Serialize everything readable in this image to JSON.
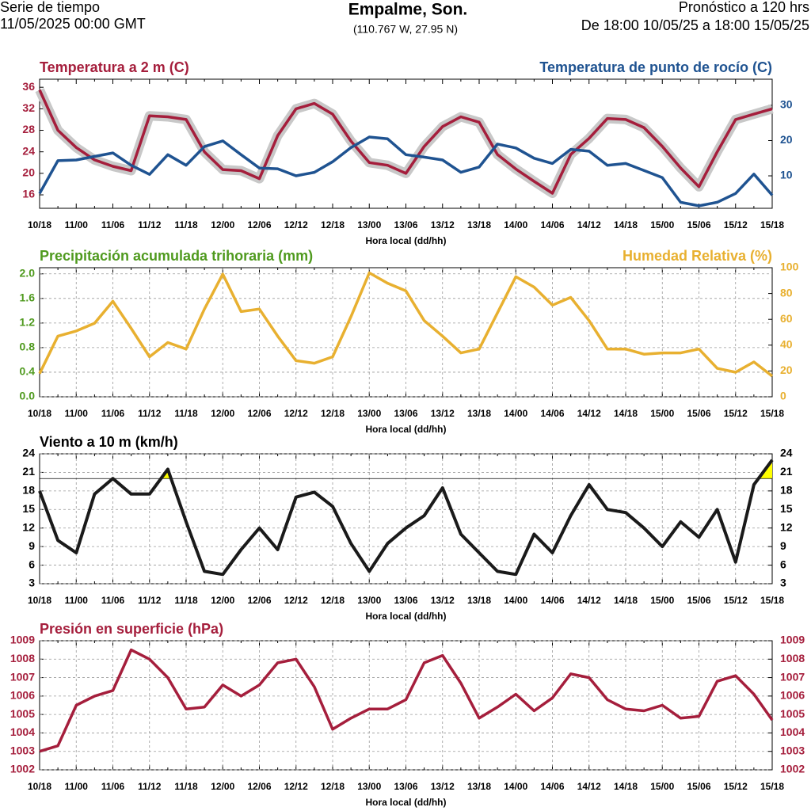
{
  "header": {
    "left1": "Serie de tiempo",
    "left2": "11/05/2025 00:00 GMT",
    "title": "Empalme, Son.",
    "coords": "(110.767 W, 27.95 N)",
    "right1": "Pronóstico a 120 hrs",
    "right2": "De 18:00 10/05/25 a 18:00 15/05/25"
  },
  "chart_data": [
    {
      "type": "line",
      "xlabel": "Hora local (dd/hh)",
      "grid": false,
      "band_color": "#c8c8c8",
      "categories": [
        "10/18",
        null,
        "11/00",
        null,
        "11/06",
        null,
        "11/12",
        null,
        "11/18",
        null,
        "12/00",
        null,
        "12/06",
        null,
        "12/12",
        null,
        "12/18",
        null,
        "13/00",
        null,
        "13/06",
        null,
        "13/12",
        null,
        "13/18",
        null,
        "14/00",
        null,
        "14/06",
        null,
        "14/12",
        null,
        "14/18",
        null,
        "15/00",
        null,
        "15/06",
        null,
        "15/12",
        null,
        "15/18"
      ],
      "ylim": [
        13.5,
        37.5
      ],
      "yticks": [
        16,
        20,
        24,
        28,
        32,
        36
      ],
      "ytick_color": "#a51e3c",
      "y2lim": [
        0.8,
        37.4
      ],
      "y2ticks": [
        10,
        20,
        30
      ],
      "y2tick_color": "#1f5391",
      "series": [
        {
          "name": "Temperatura a 2 m (C)",
          "color": "#a51e3c",
          "axis": "y",
          "band": true,
          "values": [
            35.5,
            28,
            24.8,
            22.5,
            21.3,
            20.5,
            30.7,
            30.5,
            30,
            24,
            20.7,
            20.5,
            19,
            27,
            32,
            33,
            31,
            26,
            22,
            21.5,
            20,
            25,
            28.7,
            30.5,
            29.5,
            23.5,
            20.8,
            18.5,
            16.3,
            23.5,
            26.5,
            30.2,
            30,
            28.5,
            25,
            21,
            17.5,
            24,
            30,
            31,
            32
          ]
        },
        {
          "name": "Temperatura de punto de rocío (C)",
          "color": "#1f5391",
          "axis": "y2",
          "values": [
            5,
            14.3,
            14.5,
            15.5,
            16.5,
            13,
            10.4,
            16,
            13,
            18.3,
            19.9,
            16,
            12.2,
            12,
            10,
            11,
            14,
            18,
            21,
            20.5,
            16,
            15.3,
            14.5,
            11,
            12.5,
            19,
            17.9,
            15,
            13.5,
            17.5,
            17,
            13,
            13.5,
            11.5,
            9.5,
            2.5,
            1.5,
            2.5,
            5,
            10.5,
            4.5
          ]
        }
      ]
    },
    {
      "type": "line",
      "xlabel": "Hora local (dd/hh)",
      "grid": true,
      "title": "Precipitación acumulada trihoraria (mm)",
      "title_color": "#4f9a1e",
      "categories": [
        "10/18",
        null,
        "11/00",
        null,
        "11/06",
        null,
        "11/12",
        null,
        "11/18",
        null,
        "12/00",
        null,
        "12/06",
        null,
        "12/12",
        null,
        "12/18",
        null,
        "13/00",
        null,
        "13/06",
        null,
        "13/12",
        null,
        "13/18",
        null,
        "14/00",
        null,
        "14/06",
        null,
        "14/12",
        null,
        "14/18",
        null,
        "15/00",
        null,
        "15/06",
        null,
        "15/12",
        null,
        "15/18"
      ],
      "ylim": [
        0,
        2.1
      ],
      "yticks": [
        {
          "value": 0,
          "label": "0.0"
        },
        0.4,
        0.8,
        1.2,
        1.6,
        {
          "value": 2,
          "label": "2.0"
        }
      ],
      "ytick_color": "#4f9a1e",
      "y2lim": [
        0,
        100
      ],
      "y2ticks": [
        0,
        20,
        40,
        60,
        80,
        100
      ],
      "y2tick_color": "#e8b030",
      "series": [
        {
          "name": "Humedad Relativa (%)",
          "color": "#e8b030",
          "axis": "y2",
          "values": [
            18,
            47,
            51,
            57,
            74,
            53,
            31,
            42,
            37,
            68,
            95,
            66,
            68,
            47,
            28,
            26,
            31,
            62,
            96,
            88,
            82,
            59,
            47,
            34,
            37,
            65,
            93,
            85,
            71,
            77,
            59,
            37,
            37,
            33,
            34,
            34,
            37,
            22,
            19,
            27,
            16
          ]
        }
      ]
    },
    {
      "type": "line",
      "xlabel": "Hora local (dd/hh)",
      "grid": true,
      "title": "Viento a 10 m (km/h)",
      "title_color": "#000000",
      "categories": [
        "10/18",
        null,
        "11/00",
        null,
        "11/06",
        null,
        "11/12",
        null,
        "11/18",
        null,
        "12/00",
        null,
        "12/06",
        null,
        "12/12",
        null,
        "12/18",
        null,
        "13/00",
        null,
        "13/06",
        null,
        "13/12",
        null,
        "13/18",
        null,
        "14/00",
        null,
        "14/06",
        null,
        "14/12",
        null,
        "14/18",
        null,
        "15/00",
        null,
        "15/06",
        null,
        "15/12",
        null,
        "15/18"
      ],
      "ylim": [
        3,
        24
      ],
      "yticks": [
        3,
        6,
        9,
        12,
        15,
        18,
        21,
        24
      ],
      "ytick_color": "#000000",
      "y2lim": [
        3,
        24
      ],
      "y2ticks": [
        3,
        6,
        9,
        12,
        15,
        18,
        21,
        24
      ],
      "y2tick_color": "#000000",
      "threshold": 20,
      "threshold_color": "#ffff00",
      "series": [
        {
          "color": "#1a1a1a",
          "axis": "y",
          "values": [
            18,
            10,
            8,
            17.5,
            20,
            17.5,
            17.5,
            21.5,
            13,
            5,
            4.5,
            8.5,
            12,
            8.5,
            17,
            17.8,
            15.5,
            9.5,
            5,
            9.5,
            12,
            14,
            18.5,
            11,
            8,
            5,
            4.5,
            11,
            8,
            14,
            19,
            15,
            14.5,
            12,
            9,
            13,
            10.5,
            15,
            6.5,
            19,
            23
          ]
        }
      ]
    },
    {
      "type": "line",
      "xlabel": "Hora local (dd/hh)",
      "grid": true,
      "title": "Presión en superficie (hPa)",
      "title_color": "#a51e3c",
      "categories": [
        "10/18",
        null,
        "11/00",
        null,
        "11/06",
        null,
        "11/12",
        null,
        "11/18",
        null,
        "12/00",
        null,
        "12/06",
        null,
        "12/12",
        null,
        "12/18",
        null,
        "13/00",
        null,
        "13/06",
        null,
        "13/12",
        null,
        "13/18",
        null,
        "14/00",
        null,
        "14/06",
        null,
        "14/12",
        null,
        "14/18",
        null,
        "15/00",
        null,
        "15/06",
        null,
        "15/12",
        null,
        "15/18"
      ],
      "ylim": [
        1002,
        1009
      ],
      "yticks": [
        1002,
        1003,
        1004,
        1005,
        1006,
        1007,
        1008,
        1009
      ],
      "ytick_color": "#a51e3c",
      "y2lim": [
        1002,
        1009
      ],
      "y2ticks": [
        1002,
        1003,
        1004,
        1005,
        1006,
        1007,
        1008,
        1009
      ],
      "y2tick_color": "#a51e3c",
      "series": [
        {
          "color": "#a51e3c",
          "axis": "y",
          "values": [
            1003,
            1003.3,
            1005.5,
            1006,
            1006.3,
            1008.5,
            1008,
            1007,
            1005.3,
            1005.4,
            1006.6,
            1006,
            1006.6,
            1007.8,
            1008,
            1006.5,
            1004.2,
            1004.8,
            1005.3,
            1005.3,
            1005.8,
            1007.8,
            1008.2,
            1006.7,
            1004.8,
            1005.4,
            1006.1,
            1005.2,
            1005.9,
            1007.2,
            1007,
            1005.8,
            1005.3,
            1005.2,
            1005.5,
            1004.8,
            1004.9,
            1006.8,
            1007.1,
            1006.1,
            1004.7
          ]
        }
      ]
    }
  ]
}
